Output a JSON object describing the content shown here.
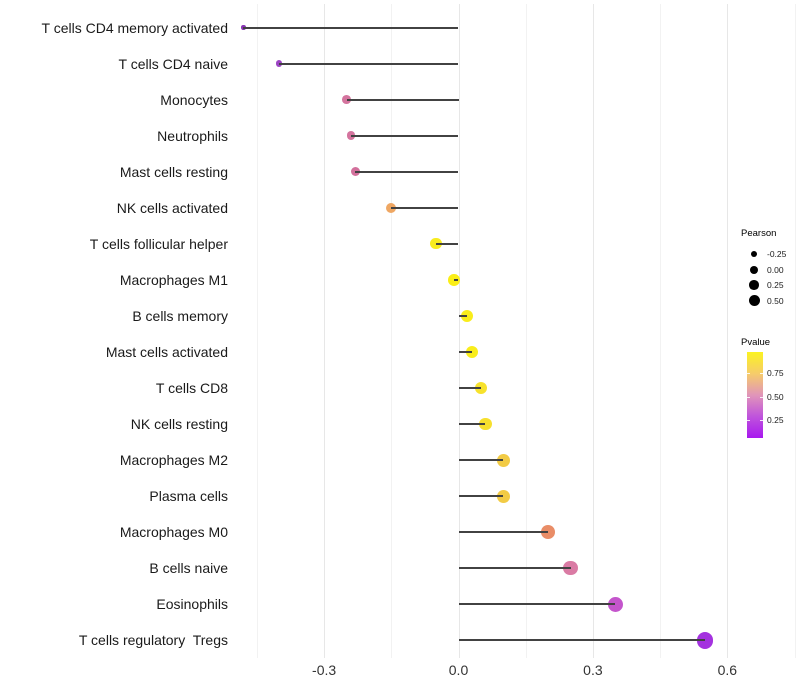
{
  "chart_data": {
    "type": "lollipop",
    "title": "",
    "xlabel": "",
    "ylabel": "",
    "x_ticks": [
      "-0.3",
      "0.0",
      "0.3",
      "0.6"
    ],
    "x_tick_values": [
      -0.3,
      0.0,
      0.3,
      0.6
    ],
    "xlim": [
      -0.5,
      0.76
    ],
    "grid": "major+minor vertical gridlines, no axis lines, white background",
    "legend_position": "right",
    "points": [
      {
        "label": "T cells CD4 memory activated",
        "pearson": -0.48,
        "color": "#8A35B5"
      },
      {
        "label": "T cells CD4 naive",
        "pearson": -0.4,
        "color": "#9C44C4"
      },
      {
        "label": "Monocytes",
        "pearson": -0.25,
        "color": "#D4749E"
      },
      {
        "label": "Neutrophils",
        "pearson": -0.24,
        "color": "#D4749E"
      },
      {
        "label": "Mast cells resting",
        "pearson": -0.23,
        "color": "#D3709C"
      },
      {
        "label": "NK cells activated",
        "pearson": -0.15,
        "color": "#EFA763"
      },
      {
        "label": "T cells follicular helper",
        "pearson": -0.05,
        "color": "#F8EC1F"
      },
      {
        "label": "Macrophages M1",
        "pearson": -0.01,
        "color": "#FAEE16"
      },
      {
        "label": "B cells memory",
        "pearson": 0.02,
        "color": "#F9ED1B"
      },
      {
        "label": "Mast cells activated",
        "pearson": 0.03,
        "color": "#F9ED1B"
      },
      {
        "label": "T cells CD8",
        "pearson": 0.05,
        "color": "#F7E22C"
      },
      {
        "label": "NK cells resting",
        "pearson": 0.06,
        "color": "#F7E02E"
      },
      {
        "label": "Macrophages M2",
        "pearson": 0.1,
        "color": "#F2CB45"
      },
      {
        "label": "Plasma cells",
        "pearson": 0.1,
        "color": "#F2CB45"
      },
      {
        "label": "Macrophages M0",
        "pearson": 0.2,
        "color": "#E98D67"
      },
      {
        "label": "B cells naive",
        "pearson": 0.25,
        "color": "#DA7BA4"
      },
      {
        "label": "Eosinophils",
        "pearson": 0.35,
        "color": "#C455CC"
      },
      {
        "label": "T cells regulatory  Tregs",
        "pearson": 0.55,
        "color": "#A432DF"
      }
    ],
    "legend": {
      "size": {
        "title": "Pearson",
        "entries": [
          "-0.25",
          "0.00",
          "0.25",
          "0.50"
        ],
        "entry_values": [
          -0.25,
          0.0,
          0.25,
          0.5
        ],
        "dot_color": "#000000"
      },
      "color": {
        "title": "Pvalue",
        "ticks": [
          "0.75",
          "0.50",
          "0.25"
        ],
        "gradient_top_to_bottom": [
          "#FBF321",
          "#F6CC6A",
          "#E195B9",
          "#BF54DC",
          "#A818EF"
        ]
      }
    },
    "style": {
      "stem_color": "#424242",
      "grid_major_color": "#E7E7E7",
      "grid_minor_color": "#F2F2F2",
      "axis_text_color": "#333333",
      "label_text_color": "#1A1A1A",
      "background": "#FFFFFF"
    }
  }
}
